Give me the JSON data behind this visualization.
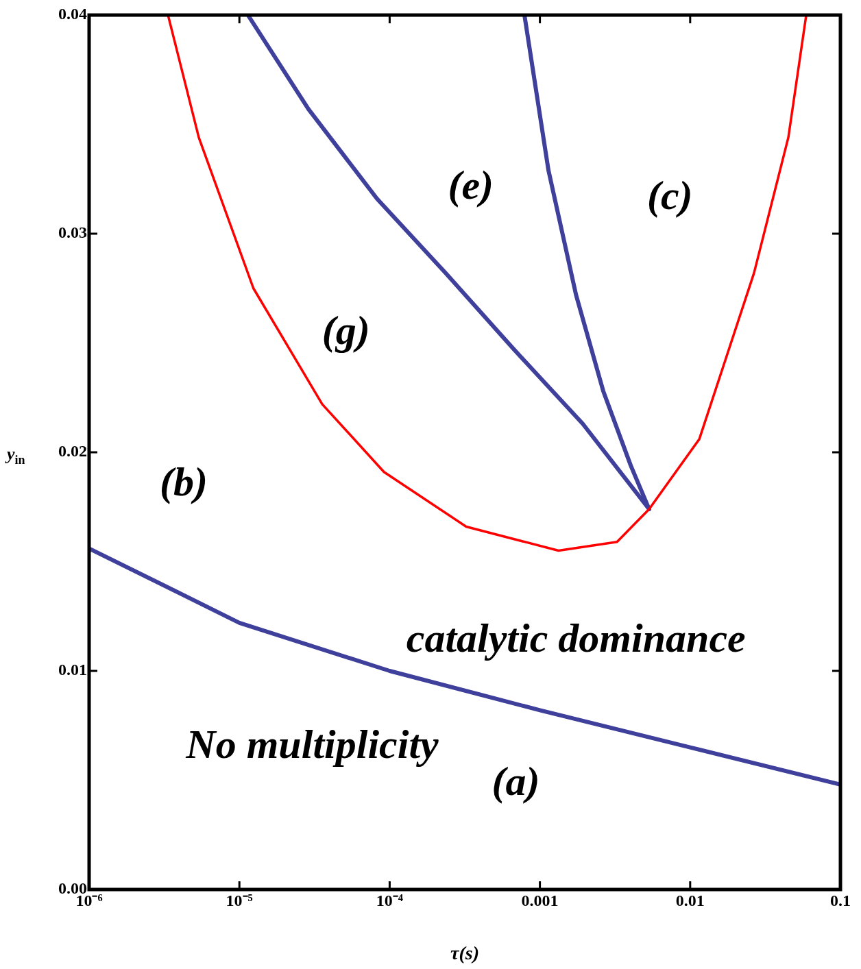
{
  "chart_data": {
    "type": "line",
    "xlabel": "τ(s)",
    "ylabel": "y$_{in}$",
    "log": "x",
    "xlim": [
      1e-06,
      0.1
    ],
    "ylim": [
      0,
      0.04
    ],
    "xticks": [
      {
        "value": 1e-06,
        "label": "10⁻⁶"
      },
      {
        "value": 1e-05,
        "label": "10⁻⁵"
      },
      {
        "value": 0.0001,
        "label": "10⁻⁴"
      },
      0.001,
      0.01,
      0.1
    ],
    "yticks": [
      {
        "value": 0,
        "label": "0.00"
      },
      0.01,
      0.02,
      0.03,
      0.04
    ],
    "grid": false,
    "legend": false,
    "marker": "none",
    "line_style": "solid",
    "series": [
      {
        "color": "#ff0000",
        "x": [
          3.35e-06,
          5.37e-06,
          1.24e-05,
          3.56e-05,
          9.17e-05,
          0.000323,
          0.00133,
          0.00326,
          0.00533,
          0.0115,
          0.0266,
          0.045,
          0.0592
        ],
        "values": [
          0.04,
          0.0344,
          0.0275,
          0.0222,
          0.0191,
          0.0166,
          0.0155,
          0.0159,
          0.0174,
          0.0206,
          0.0282,
          0.0344,
          0.04
        ]
      },
      {
        "color": "#3f3f9c",
        "x": [
          1.14e-05,
          2.88e-05,
          8.24e-05,
          0.000236,
          0.000673,
          0.00193,
          0.00533
        ],
        "values": [
          0.04,
          0.0357,
          0.0316,
          0.0282,
          0.0247,
          0.0213,
          0.0174
        ]
      },
      {
        "color": "#3f3f9c",
        "x": [
          0.000789,
          0.00114,
          0.00174,
          0.00264,
          0.00402,
          0.00533
        ],
        "values": [
          0.04,
          0.0329,
          0.0272,
          0.0228,
          0.0194,
          0.0174
        ]
      },
      {
        "color": "#3f3f9c",
        "x": [
          1e-06,
          1e-05,
          0.0001,
          0.001,
          0.01,
          0.1
        ],
        "values": [
          0.0156,
          0.0122,
          0.01,
          0.0082,
          0.0065,
          0.0048
        ]
      }
    ],
    "annotations": [
      "(e)",
      "(c)",
      "(g)",
      "(b)",
      "catalytic dominance",
      "No multiplicity",
      "(a)"
    ]
  }
}
